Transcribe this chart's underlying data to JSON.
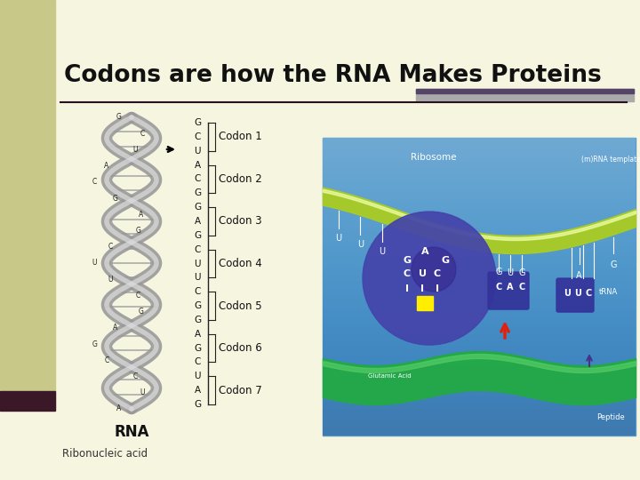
{
  "title": "Codons are how the RNA Makes Proteins",
  "background_color": "#f5f5e0",
  "left_bar_color": "#c8c888",
  "left_bar_bottom_color": "#3a1828",
  "separator_color": "#2a1020",
  "top_right_bar_color": "#aaaaaa",
  "top_right_dark_color": "#554466",
  "title_fontsize": 19,
  "label_rna": "RNA",
  "label_ribonucleic": "Ribonucleic acid",
  "codons": [
    "Codon 1",
    "Codon 2",
    "Codon 3",
    "Codon 4",
    "Codon 5",
    "Codon 6",
    "Codon 7"
  ],
  "nuc_sequence": [
    "G",
    "C",
    "U",
    "A",
    "C",
    "G",
    "G",
    "A",
    "G",
    "C",
    "U",
    "U",
    "C",
    "G",
    "G",
    "A",
    "G",
    "C",
    "U",
    "A",
    "G"
  ],
  "helix_left_nucs": [
    "G",
    "C",
    "U",
    "A",
    "C",
    "G",
    "A",
    "G",
    "C",
    "U",
    "U",
    "C",
    "G",
    "A",
    "G",
    "C",
    "C",
    "U",
    "A"
  ],
  "ribosome_color": "#4444aa",
  "ribosome_dark": "#332288",
  "mrna_color": "#aacc22",
  "peptide_color": "#22aa44",
  "sky_color": "#5599cc",
  "trna_color": "#333399",
  "yellow_sq": "#ffee00",
  "red_arrow": "#dd2211"
}
